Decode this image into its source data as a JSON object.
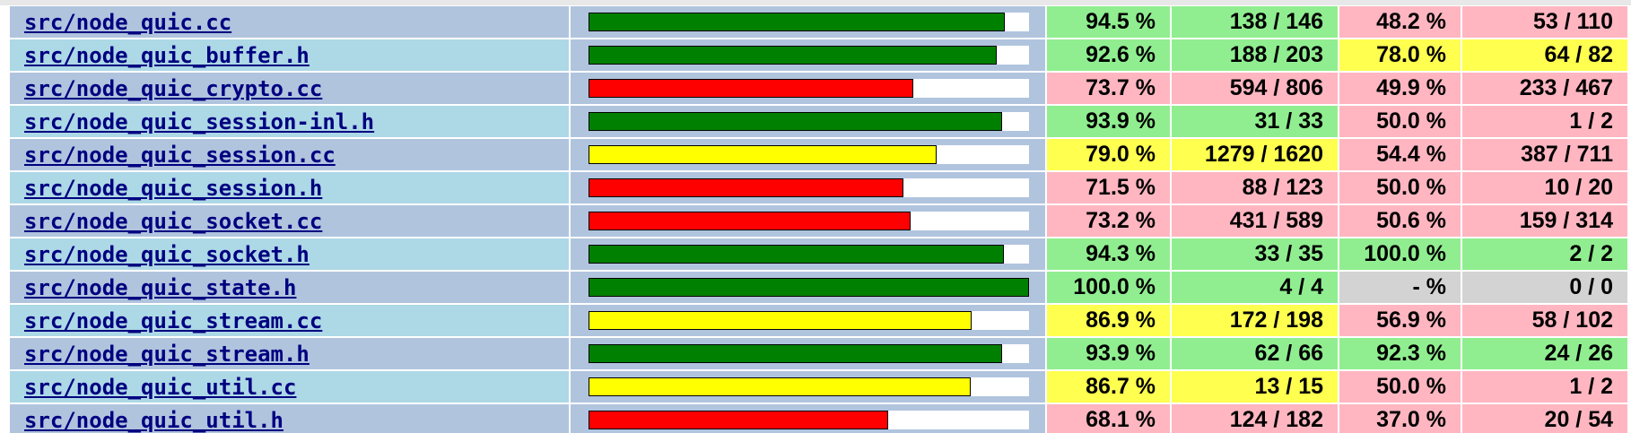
{
  "rows": [
    {
      "file": "src/node_quic.cc",
      "line_pct": 94.5,
      "line_pct_label": "94.5 %",
      "line_hits": "138 / 146",
      "line_level": "hi",
      "func_pct_label": "48.2 %",
      "func_hits": "53 / 110",
      "func_level": "lo"
    },
    {
      "file": "src/node_quic_buffer.h",
      "line_pct": 92.6,
      "line_pct_label": "92.6 %",
      "line_hits": "188 / 203",
      "line_level": "hi",
      "func_pct_label": "78.0 %",
      "func_hits": "64 / 82",
      "func_level": "med"
    },
    {
      "file": "src/node_quic_crypto.cc",
      "line_pct": 73.7,
      "line_pct_label": "73.7 %",
      "line_hits": "594 / 806",
      "line_level": "lo",
      "func_pct_label": "49.9 %",
      "func_hits": "233 / 467",
      "func_level": "lo"
    },
    {
      "file": "src/node_quic_session-inl.h",
      "line_pct": 93.9,
      "line_pct_label": "93.9 %",
      "line_hits": "31 / 33",
      "line_level": "hi",
      "func_pct_label": "50.0 %",
      "func_hits": "1 / 2",
      "func_level": "lo"
    },
    {
      "file": "src/node_quic_session.cc",
      "line_pct": 79.0,
      "line_pct_label": "79.0 %",
      "line_hits": "1279 / 1620",
      "line_level": "med",
      "func_pct_label": "54.4 %",
      "func_hits": "387 / 711",
      "func_level": "lo"
    },
    {
      "file": "src/node_quic_session.h",
      "line_pct": 71.5,
      "line_pct_label": "71.5 %",
      "line_hits": "88 / 123",
      "line_level": "lo",
      "func_pct_label": "50.0 %",
      "func_hits": "10 / 20",
      "func_level": "lo"
    },
    {
      "file": "src/node_quic_socket.cc",
      "line_pct": 73.2,
      "line_pct_label": "73.2 %",
      "line_hits": "431 / 589",
      "line_level": "lo",
      "func_pct_label": "50.6 %",
      "func_hits": "159 / 314",
      "func_level": "lo"
    },
    {
      "file": "src/node_quic_socket.h",
      "line_pct": 94.3,
      "line_pct_label": "94.3 %",
      "line_hits": "33 / 35",
      "line_level": "hi",
      "func_pct_label": "100.0 %",
      "func_hits": "2 / 2",
      "func_level": "hi"
    },
    {
      "file": "src/node_quic_state.h",
      "line_pct": 100.0,
      "line_pct_label": "100.0 %",
      "line_hits": "4 / 4",
      "line_level": "hi",
      "func_pct_label": "- %",
      "func_hits": "0 / 0",
      "func_level": "na"
    },
    {
      "file": "src/node_quic_stream.cc",
      "line_pct": 86.9,
      "line_pct_label": "86.9 %",
      "line_hits": "172 / 198",
      "line_level": "med",
      "func_pct_label": "56.9 %",
      "func_hits": "58 / 102",
      "func_level": "lo"
    },
    {
      "file": "src/node_quic_stream.h",
      "line_pct": 93.9,
      "line_pct_label": "93.9 %",
      "line_hits": "62 / 66",
      "line_level": "hi",
      "func_pct_label": "92.3 %",
      "func_hits": "24 / 26",
      "func_level": "hi"
    },
    {
      "file": "src/node_quic_util.cc",
      "line_pct": 86.7,
      "line_pct_label": "86.7 %",
      "line_hits": "13 / 15",
      "line_level": "med",
      "func_pct_label": "50.0 %",
      "func_hits": "1 / 2",
      "func_level": "lo"
    },
    {
      "file": "src/node_quic_util.h",
      "line_pct": 68.1,
      "line_pct_label": "68.1 %",
      "line_hits": "124 / 182",
      "line_level": "lo",
      "func_pct_label": "37.0 %",
      "func_hits": "20 / 54",
      "func_level": "lo"
    }
  ],
  "colors": {
    "row_odd": "#b0c4de",
    "row_even": "#add8e6",
    "link": "#000080",
    "hi": "#90ee90",
    "med": "#ffff50",
    "lo": "#ffb6c1",
    "na": "#d3d3d3",
    "bar_hi": "#008000",
    "bar_med": "#ffff00",
    "bar_lo": "#ff0000"
  }
}
